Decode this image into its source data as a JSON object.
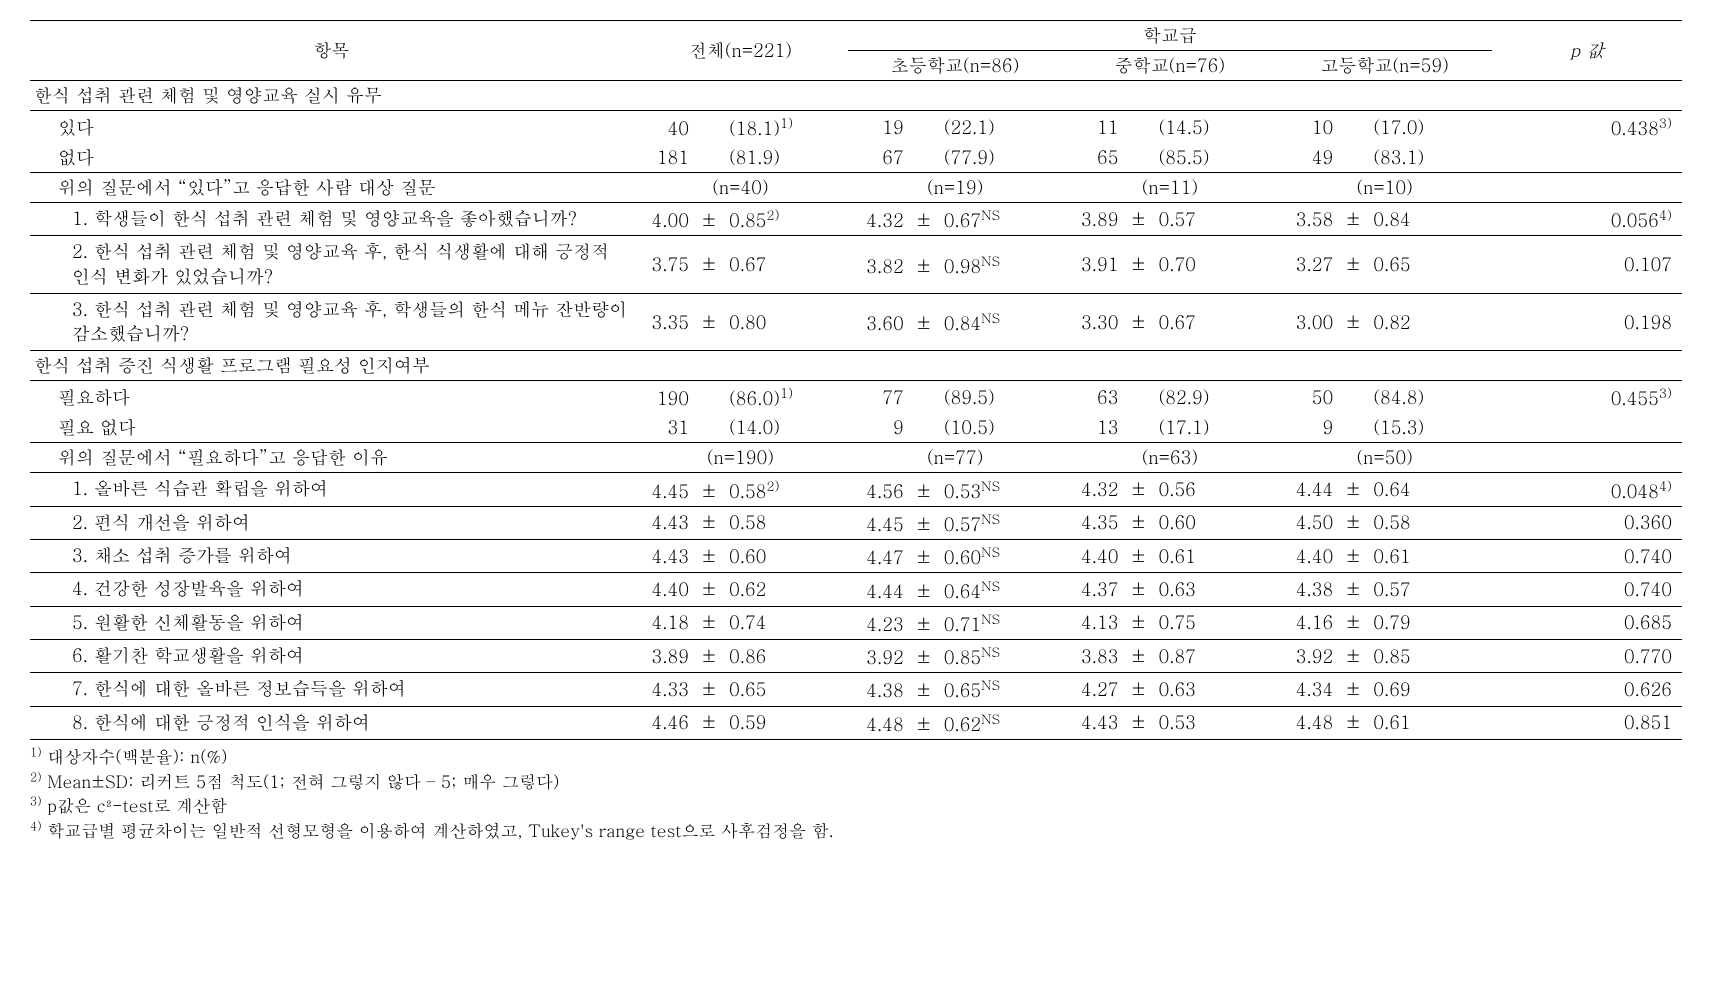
{
  "columns": {
    "item": "항목",
    "total": "전체(n=221)",
    "group": "학교급",
    "elem": "초등학교(n=86)",
    "mid": "중학교(n=76)",
    "high": "고등학교(n=59)",
    "p": "p 값"
  },
  "section1": {
    "title": "한식 섭취 관련 체험 및 영양교육 실시 유무",
    "rows": [
      {
        "label": "있다",
        "t_n": "40",
        "t_p": "(18.1)",
        "t_sup": "1)",
        "e_n": "19",
        "e_p": "(22.1)",
        "m_n": "11",
        "m_p": "(14.5)",
        "h_n": "10",
        "h_p": "(17.0)",
        "p": "0.438",
        "p_sup": "3)"
      },
      {
        "label": "없다",
        "t_n": "181",
        "t_p": "(81.9)",
        "e_n": "67",
        "e_p": "(77.9)",
        "m_n": "65",
        "m_p": "(85.5)",
        "h_n": "49",
        "h_p": "(83.1)"
      }
    ],
    "sub_header": {
      "label": "위의 질문에서 “있다”고 응답한 사람 대상 질문",
      "t": "(n=40)",
      "e": "(n=19)",
      "m": "(n=11)",
      "h": "(n=10)"
    },
    "sub_rows": [
      {
        "label": "1. 학생들이 한식 섭취 관련 체험 및 영양교육을 좋아했습니까?",
        "t_m": "4.00",
        "t_s": "0.85",
        "t_sup": "2)",
        "e_m": "4.32",
        "e_s": "0.67",
        "e_sup": "NS",
        "m_m": "3.89",
        "m_s": "0.57",
        "h_m": "3.58",
        "h_s": "0.84",
        "p": "0.056",
        "p_sup": "4)"
      },
      {
        "label": "2. 한식 섭취 관련 체험 및 영양교육 후, 한식 식생활에 대해 긍정적 인식 변화가 있었습니까?",
        "t_m": "3.75",
        "t_s": "0.67",
        "e_m": "3.82",
        "e_s": "0.98",
        "e_sup": "NS",
        "m_m": "3.91",
        "m_s": "0.70",
        "h_m": "3.27",
        "h_s": "0.65",
        "p": "0.107"
      },
      {
        "label": "3. 한식 섭취 관련 체험 및 영양교육 후, 학생들의 한식 메뉴 잔반량이 감소했습니까?",
        "t_m": "3.35",
        "t_s": "0.80",
        "e_m": "3.60",
        "e_s": "0.84",
        "e_sup": "NS",
        "m_m": "3.30",
        "m_s": "0.67",
        "h_m": "3.00",
        "h_s": "0.82",
        "p": "0.198"
      }
    ]
  },
  "section2": {
    "title": "한식 섭취 증진 식생활 프로그램 필요성 인지여부",
    "rows": [
      {
        "label": "필요하다",
        "t_n": "190",
        "t_p": "(86.0)",
        "t_sup": "1)",
        "e_n": "77",
        "e_p": "(89.5)",
        "m_n": "63",
        "m_p": "(82.9)",
        "h_n": "50",
        "h_p": "(84.8)",
        "p": "0.455",
        "p_sup": "3)"
      },
      {
        "label": "필요 없다",
        "t_n": "31",
        "t_p": "(14.0)",
        "e_n": "9",
        "e_p": "(10.5)",
        "m_n": "13",
        "m_p": "(17.1)",
        "h_n": "9",
        "h_p": "(15.3)"
      }
    ],
    "sub_header": {
      "label": "위의 질문에서 “필요하다”고 응답한 이유",
      "t": "(n=190)",
      "e": "(n=77)",
      "m": "(n=63)",
      "h": "(n=50)"
    },
    "sub_rows": [
      {
        "label": "1. 올바른 식습관 확립을 위하여",
        "t_m": "4.45",
        "t_s": "0.58",
        "t_sup": "2)",
        "e_m": "4.56",
        "e_s": "0.53",
        "e_sup": "NS",
        "m_m": "4.32",
        "m_s": "0.56",
        "h_m": "4.44",
        "h_s": "0.64",
        "p": "0.048",
        "p_sup": "4)"
      },
      {
        "label": "2. 편식 개선을 위하여",
        "t_m": "4.43",
        "t_s": "0.58",
        "e_m": "4.45",
        "e_s": "0.57",
        "e_sup": "NS",
        "m_m": "4.35",
        "m_s": "0.60",
        "h_m": "4.50",
        "h_s": "0.58",
        "p": "0.360"
      },
      {
        "label": "3. 채소 섭취 증가를 위하여",
        "t_m": "4.43",
        "t_s": "0.60",
        "e_m": "4.47",
        "e_s": "0.60",
        "e_sup": "NS",
        "m_m": "4.40",
        "m_s": "0.61",
        "h_m": "4.40",
        "h_s": "0.61",
        "p": "0.740"
      },
      {
        "label": "4. 건강한 성장발육을 위하여",
        "t_m": "4.40",
        "t_s": "0.62",
        "e_m": "4.44",
        "e_s": "0.64",
        "e_sup": "NS",
        "m_m": "4.37",
        "m_s": "0.63",
        "h_m": "4.38",
        "h_s": "0.57",
        "p": "0.740"
      },
      {
        "label": "5. 원활한 신체활동을 위하여",
        "t_m": "4.18",
        "t_s": "0.74",
        "e_m": "4.23",
        "e_s": "0.71",
        "e_sup": "NS",
        "m_m": "4.13",
        "m_s": "0.75",
        "h_m": "4.16",
        "h_s": "0.79",
        "p": "0.685"
      },
      {
        "label": "6. 활기찬 학교생활을 위하여",
        "t_m": "3.89",
        "t_s": "0.86",
        "e_m": "3.92",
        "e_s": "0.85",
        "e_sup": "NS",
        "m_m": "3.83",
        "m_s": "0.87",
        "h_m": "3.92",
        "h_s": "0.85",
        "p": "0.770"
      },
      {
        "label": "7. 한식에 대한 올바른 정보습득을 위하여",
        "t_m": "4.33",
        "t_s": "0.65",
        "e_m": "4.38",
        "e_s": "0.65",
        "e_sup": "NS",
        "m_m": "4.27",
        "m_s": "0.63",
        "h_m": "4.34",
        "h_s": "0.69",
        "p": "0.626"
      },
      {
        "label": "8. 한식에 대한 긍정적 인식을 위하여",
        "t_m": "4.46",
        "t_s": "0.59",
        "e_m": "4.48",
        "e_s": "0.62",
        "e_sup": "NS",
        "m_m": "4.43",
        "m_s": "0.53",
        "h_m": "4.48",
        "h_s": "0.61",
        "p": "0.851"
      }
    ]
  },
  "footnotes": [
    {
      "sup": "1)",
      "text": " 대상자수(백분율): n(%)"
    },
    {
      "sup": "2)",
      "text": " Mean±SD: 리커트 5점 척도(1; 전혀 그렇지 않다 – 5; 매우 그렇다)"
    },
    {
      "sup": "3)",
      "text": " p값은 c²-test로 계산함"
    },
    {
      "sup": "4)",
      "text": " 학교급별 평균차이는 일반적 선형모형을 이용하여 계산하였고, Tukey's range test으로 사후검정을 함."
    }
  ],
  "style": {
    "font_family": "Batang, Times New Roman, serif",
    "font_size_pt": 13,
    "border_color": "#000000",
    "background": "#ffffff",
    "col_widths_pct": [
      36.5,
      13,
      13,
      13,
      13,
      11.5
    ]
  }
}
